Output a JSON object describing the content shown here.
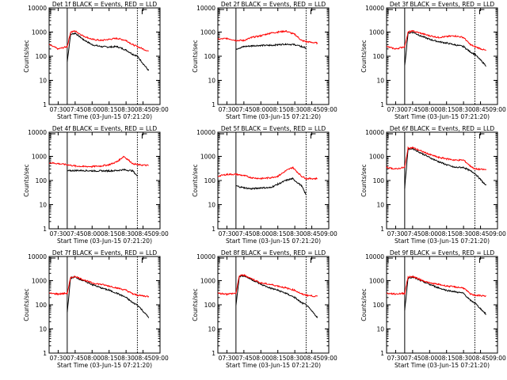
{
  "figure": {
    "panel_titles": [
      "Det 1f  BLACK = Events, RED = LLD",
      "Det 2f  BLACK = Events, RED = LLD",
      "Det 3f  BLACK = Events, RED = LLD",
      "Det 4f  BLACK = Events, RED = LLD",
      "Det 5f  BLACK = Events, RED = LLD",
      "Det 6f  BLACK = Events, RED = LLD",
      "Det 7f  BLACK = Events, RED = LLD",
      "Det 8f  BLACK = Events, RED = LLD",
      "Det 9f  BLACK = Events, RED = LLD"
    ],
    "xlabel": "Start Time (03-Jun-15 07:21:20)",
    "ylabel": "Counts/sec",
    "colors": {
      "events": "#000000",
      "lld": "#ff0000",
      "markers": "#000000"
    }
  },
  "chart_data": [
    {
      "type": "line",
      "title": "Det 1f  BLACK = Events, RED = LLD",
      "xlabel": "Start Time (03-Jun-15 07:21:20)",
      "ylabel": "Counts/sec",
      "yscale": "log",
      "xlim": [
        "07:22",
        "09:00"
      ],
      "ylim": [
        1,
        10000
      ],
      "x_ticks": [
        "07:30",
        "07:45",
        "08:00",
        "08:15",
        "08:30",
        "08:45",
        "09:00"
      ],
      "y_ticks": [
        "1",
        "10",
        "100",
        "1000",
        "10000"
      ],
      "vlines": [
        "07:38",
        "08:40"
      ],
      "x": [
        "07:22",
        "07:30",
        "07:38",
        "07:41",
        "07:45",
        "07:52",
        "08:00",
        "08:08",
        "08:15",
        "08:22",
        "08:30",
        "08:36",
        "08:40",
        "08:50"
      ],
      "series": [
        {
          "name": "BLACK = Events",
          "values": [
            null,
            null,
            60,
            800,
            900,
            500,
            300,
            250,
            240,
            250,
            180,
            120,
            100,
            25
          ]
        },
        {
          "name": "RED = LLD",
          "values": [
            300,
            200,
            250,
            1000,
            1100,
            700,
            500,
            450,
            500,
            550,
            450,
            300,
            250,
            160
          ]
        }
      ]
    },
    {
      "type": "line",
      "title": "Det 2f  BLACK = Events, RED = LLD",
      "xlabel": "Start Time (03-Jun-15 07:21:20)",
      "ylabel": "Counts/sec",
      "yscale": "log",
      "xlim": [
        "07:22",
        "09:00"
      ],
      "ylim": [
        1,
        10000
      ],
      "x_ticks": [
        "07:30",
        "07:45",
        "08:00",
        "08:15",
        "08:30",
        "08:45",
        "09:00"
      ],
      "y_ticks": [
        "1",
        "10",
        "100",
        "1000",
        "10000"
      ],
      "vlines": [
        "07:38",
        "08:40"
      ],
      "x": [
        "07:22",
        "07:30",
        "07:38",
        "07:45",
        "07:52",
        "08:00",
        "08:08",
        "08:15",
        "08:22",
        "08:30",
        "08:36",
        "08:40",
        "08:50"
      ],
      "series": [
        {
          "name": "BLACK = Events",
          "values": [
            null,
            null,
            200,
            250,
            270,
            280,
            280,
            300,
            320,
            300,
            250,
            220,
            null
          ]
        },
        {
          "name": "RED = LLD",
          "values": [
            500,
            550,
            450,
            450,
            600,
            700,
            900,
            1000,
            1100,
            800,
            450,
            400,
            350
          ]
        }
      ]
    },
    {
      "type": "line",
      "title": "Det 3f  BLACK = Events, RED = LLD",
      "xlabel": "Start Time (03-Jun-15 07:21:20)",
      "ylabel": "Counts/sec",
      "yscale": "log",
      "xlim": [
        "07:22",
        "09:00"
      ],
      "ylim": [
        1,
        10000
      ],
      "x_ticks": [
        "07:30",
        "07:45",
        "08:00",
        "08:15",
        "08:30",
        "08:45",
        "09:00"
      ],
      "y_ticks": [
        "1",
        "10",
        "100",
        "1000",
        "10000"
      ],
      "vlines": [
        "07:38",
        "08:40"
      ],
      "x": [
        "07:22",
        "07:30",
        "07:38",
        "07:41",
        "07:45",
        "07:52",
        "08:00",
        "08:08",
        "08:15",
        "08:22",
        "08:30",
        "08:36",
        "08:40",
        "08:50"
      ],
      "series": [
        {
          "name": "BLACK = Events",
          "values": [
            null,
            null,
            40,
            900,
            1000,
            700,
            500,
            400,
            350,
            300,
            250,
            150,
            120,
            40
          ]
        },
        {
          "name": "RED = LLD",
          "values": [
            250,
            200,
            250,
            1000,
            1100,
            900,
            700,
            600,
            650,
            700,
            600,
            300,
            250,
            170
          ]
        }
      ]
    },
    {
      "type": "line",
      "title": "Det 4f  BLACK = Events, RED = LLD",
      "xlabel": "Start Time (03-Jun-15 07:21:20)",
      "ylabel": "Counts/sec",
      "yscale": "log",
      "xlim": [
        "07:22",
        "09:00"
      ],
      "ylim": [
        1,
        10000
      ],
      "x_ticks": [
        "07:30",
        "07:45",
        "08:00",
        "08:15",
        "08:30",
        "08:45",
        "09:00"
      ],
      "y_ticks": [
        "1",
        "10",
        "100",
        "1000",
        "10000"
      ],
      "vlines": [
        "07:38",
        "08:40"
      ],
      "x": [
        "07:22",
        "07:30",
        "07:38",
        "07:45",
        "07:52",
        "08:00",
        "08:08",
        "08:15",
        "08:22",
        "08:28",
        "08:36",
        "08:40",
        "08:50"
      ],
      "series": [
        {
          "name": "BLACK = Events",
          "values": [
            null,
            null,
            250,
            260,
            260,
            250,
            250,
            250,
            260,
            280,
            250,
            150,
            null
          ]
        },
        {
          "name": "RED = LLD",
          "values": [
            550,
            500,
            450,
            400,
            380,
            380,
            400,
            450,
            600,
            1000,
            500,
            450,
            420
          ]
        }
      ]
    },
    {
      "type": "line",
      "title": "Det 5f  BLACK = Events, RED = LLD",
      "xlabel": "Start Time (03-Jun-15 07:21:20)",
      "ylabel": "Counts/sec",
      "yscale": "log",
      "xlim": [
        "07:22",
        "09:00"
      ],
      "ylim": [
        1,
        10000
      ],
      "x_ticks": [
        "07:30",
        "07:45",
        "08:00",
        "08:15",
        "08:30",
        "08:45",
        "09:00"
      ],
      "y_ticks": [
        "1",
        "10",
        "100",
        "1000",
        "10000"
      ],
      "vlines": [
        "07:38",
        "08:40"
      ],
      "x": [
        "07:22",
        "07:30",
        "07:38",
        "07:45",
        "07:52",
        "08:00",
        "08:08",
        "08:15",
        "08:22",
        "08:28",
        "08:36",
        "08:40",
        "08:50"
      ],
      "series": [
        {
          "name": "BLACK = Events",
          "values": [
            null,
            null,
            60,
            50,
            45,
            50,
            50,
            70,
            100,
            120,
            60,
            25,
            null
          ]
        },
        {
          "name": "RED = LLD",
          "values": [
            150,
            180,
            180,
            160,
            130,
            120,
            130,
            150,
            250,
            350,
            150,
            120,
            120
          ]
        }
      ]
    },
    {
      "type": "line",
      "title": "Det 6f  BLACK = Events, RED = LLD",
      "xlabel": "Start Time (03-Jun-15 07:21:20)",
      "ylabel": "Counts/sec",
      "yscale": "log",
      "xlim": [
        "07:22",
        "09:00"
      ],
      "ylim": [
        1,
        10000
      ],
      "x_ticks": [
        "07:30",
        "07:45",
        "08:00",
        "08:15",
        "08:30",
        "08:45",
        "09:00"
      ],
      "y_ticks": [
        "1",
        "10",
        "100",
        "1000",
        "10000"
      ],
      "vlines": [
        "07:38",
        "08:40"
      ],
      "x": [
        "07:22",
        "07:30",
        "07:38",
        "07:41",
        "07:45",
        "07:52",
        "08:00",
        "08:08",
        "08:15",
        "08:22",
        "08:30",
        "08:36",
        "08:40",
        "08:50"
      ],
      "series": [
        {
          "name": "BLACK = Events",
          "values": [
            null,
            null,
            50,
            2000,
            2100,
            1400,
            900,
            600,
            450,
            350,
            350,
            250,
            200,
            60
          ]
        },
        {
          "name": "RED = LLD",
          "values": [
            350,
            300,
            350,
            2200,
            2300,
            1700,
            1200,
            900,
            800,
            700,
            700,
            400,
            300,
            280
          ]
        }
      ]
    },
    {
      "type": "line",
      "title": "Det 7f  BLACK = Events, RED = LLD",
      "xlabel": "Start Time (03-Jun-15 07:21:20)",
      "ylabel": "Counts/sec",
      "yscale": "log",
      "xlim": [
        "07:22",
        "09:00"
      ],
      "ylim": [
        1,
        10000
      ],
      "x_ticks": [
        "07:30",
        "07:45",
        "08:00",
        "08:15",
        "08:30",
        "08:45",
        "09:00"
      ],
      "y_ticks": [
        "1",
        "10",
        "100",
        "1000",
        "10000"
      ],
      "vlines": [
        "07:38",
        "08:40"
      ],
      "x": [
        "07:22",
        "07:30",
        "07:38",
        "07:41",
        "07:45",
        "07:52",
        "08:00",
        "08:08",
        "08:15",
        "08:22",
        "08:30",
        "08:36",
        "08:40",
        "08:50"
      ],
      "series": [
        {
          "name": "BLACK = Events",
          "values": [
            null,
            null,
            50,
            1300,
            1400,
            1000,
            700,
            500,
            400,
            300,
            200,
            120,
            100,
            30
          ]
        },
        {
          "name": "RED = LLD",
          "values": [
            300,
            280,
            300,
            1300,
            1500,
            1100,
            800,
            700,
            600,
            500,
            400,
            280,
            250,
            220
          ]
        }
      ]
    },
    {
      "type": "line",
      "title": "Det 8f  BLACK = Events, RED = LLD",
      "xlabel": "Start Time (03-Jun-15 07:21:20)",
      "ylabel": "Counts/sec",
      "yscale": "log",
      "xlim": [
        "07:22",
        "09:00"
      ],
      "ylim": [
        1,
        10000
      ],
      "x_ticks": [
        "07:30",
        "07:45",
        "08:00",
        "08:15",
        "08:30",
        "08:45",
        "09:00"
      ],
      "y_ticks": [
        "1",
        "10",
        "100",
        "1000",
        "10000"
      ],
      "vlines": [
        "07:38",
        "08:40"
      ],
      "x": [
        "07:22",
        "07:30",
        "07:38",
        "07:41",
        "07:45",
        "07:52",
        "08:00",
        "08:08",
        "08:15",
        "08:22",
        "08:30",
        "08:36",
        "08:40",
        "08:50"
      ],
      "series": [
        {
          "name": "BLACK = Events",
          "values": [
            null,
            null,
            100,
            1500,
            1600,
            1100,
            700,
            500,
            400,
            300,
            200,
            120,
            100,
            30
          ]
        },
        {
          "name": "RED = LLD",
          "values": [
            300,
            280,
            300,
            1600,
            1700,
            1200,
            800,
            700,
            600,
            500,
            400,
            280,
            250,
            220
          ]
        }
      ]
    },
    {
      "type": "line",
      "title": "Det 9f  BLACK = Events, RED = LLD",
      "xlabel": "Start Time (03-Jun-15 07:21:20)",
      "ylabel": "Counts/sec",
      "yscale": "log",
      "xlim": [
        "07:22",
        "09:00"
      ],
      "ylim": [
        1,
        10000
      ],
      "x_ticks": [
        "07:30",
        "07:45",
        "08:00",
        "08:15",
        "08:30",
        "08:45",
        "09:00"
      ],
      "y_ticks": [
        "1",
        "10",
        "100",
        "1000",
        "10000"
      ],
      "vlines": [
        "07:38",
        "08:40"
      ],
      "x": [
        "07:22",
        "07:30",
        "07:38",
        "07:41",
        "07:45",
        "07:52",
        "08:00",
        "08:08",
        "08:15",
        "08:22",
        "08:30",
        "08:36",
        "08:40",
        "08:50"
      ],
      "series": [
        {
          "name": "BLACK = Events",
          "values": [
            null,
            null,
            60,
            1300,
            1400,
            1000,
            700,
            500,
            400,
            350,
            300,
            150,
            120,
            40
          ]
        },
        {
          "name": "RED = LLD",
          "values": [
            300,
            280,
            300,
            1400,
            1500,
            1100,
            800,
            700,
            600,
            550,
            500,
            280,
            250,
            230
          ]
        }
      ]
    }
  ]
}
